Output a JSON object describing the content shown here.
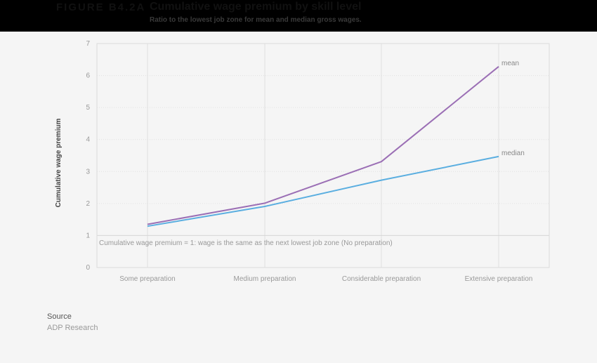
{
  "header": {
    "figure_label": "FIGURE B4.2A",
    "title": "Cumulative wage premium by skill level",
    "subtitle": "Ratio to the lowest job zone for mean and median gross wages."
  },
  "chart_data": {
    "type": "line",
    "title": "Cumulative wage premium by skill level",
    "subtitle": "Ratio to the lowest job zone for mean and median gross wages.",
    "xlabel": "",
    "ylabel": "Cumulative wage premium",
    "categories": [
      "Some preparation",
      "Medium preparation",
      "Considerable preparation",
      "Extensive preparation"
    ],
    "series": [
      {
        "name": "mean",
        "color": "#9b6fb5",
        "values": [
          1.35,
          2.01,
          3.31,
          6.28
        ]
      },
      {
        "name": "median",
        "color": "#5aaee0",
        "values": [
          1.29,
          1.91,
          2.73,
          3.47
        ]
      }
    ],
    "ylim": [
      0,
      7
    ],
    "yticks": [
      0,
      1,
      2,
      3,
      4,
      5,
      6,
      7
    ],
    "grid": true,
    "legend": "inline labels at line ends",
    "annotation": "Cumulative wage premium = 1: wage is the same as the next lowest job zone (No preparation)"
  },
  "source": {
    "heading": "Source",
    "value": "ADP Research"
  }
}
